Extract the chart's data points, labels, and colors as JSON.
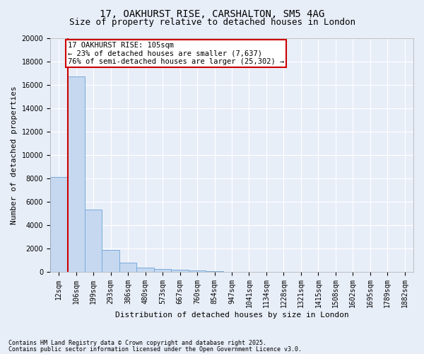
{
  "title_line1": "17, OAKHURST RISE, CARSHALTON, SM5 4AG",
  "title_line2": "Size of property relative to detached houses in London",
  "xlabel": "Distribution of detached houses by size in London",
  "ylabel": "Number of detached properties",
  "bins": [
    "12sqm",
    "106sqm",
    "199sqm",
    "293sqm",
    "386sqm",
    "480sqm",
    "573sqm",
    "667sqm",
    "760sqm",
    "854sqm",
    "947sqm",
    "1041sqm",
    "1134sqm",
    "1228sqm",
    "1321sqm",
    "1415sqm",
    "1508sqm",
    "1602sqm",
    "1695sqm",
    "1789sqm",
    "1882sqm"
  ],
  "bar_values": [
    8100,
    16700,
    5300,
    1850,
    750,
    350,
    220,
    150,
    100,
    50,
    0,
    0,
    0,
    0,
    0,
    0,
    0,
    0,
    0,
    0,
    0
  ],
  "bar_color": "#c5d8f0",
  "bar_edge_color": "#7aabda",
  "ylim": [
    0,
    20000
  ],
  "yticks": [
    0,
    2000,
    4000,
    6000,
    8000,
    10000,
    12000,
    14000,
    16000,
    18000,
    20000
  ],
  "annotation_text": "17 OAKHURST RISE: 105sqm\n← 23% of detached houses are smaller (7,637)\n76% of semi-detached houses are larger (25,302) →",
  "annotation_box_color": "#ffffff",
  "annotation_border_color": "#cc0000",
  "footer_line1": "Contains HM Land Registry data © Crown copyright and database right 2025.",
  "footer_line2": "Contains public sector information licensed under the Open Government Licence v3.0.",
  "bg_color": "#e8eef8",
  "grid_color": "#ffffff",
  "title_fontsize": 10,
  "subtitle_fontsize": 9,
  "axis_label_fontsize": 8,
  "tick_fontsize": 7,
  "footer_fontsize": 6
}
